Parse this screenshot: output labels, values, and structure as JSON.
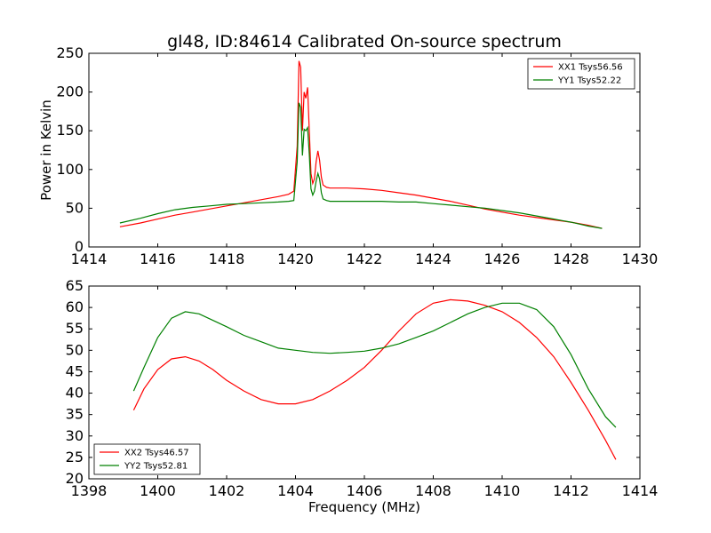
{
  "figure": {
    "title": "gl48, ID:84614 Calibrated On-source spectrum"
  },
  "chart_data": [
    {
      "type": "line",
      "title": "gl48, ID:84614 Calibrated On-source spectrum",
      "xlabel": "",
      "ylabel": "Power in Kelvin",
      "xlim": [
        1414,
        1430
      ],
      "ylim": [
        0,
        250
      ],
      "xticks": [
        "1414",
        "1416",
        "1418",
        "1420",
        "1422",
        "1424",
        "1426",
        "1428",
        "1430"
      ],
      "yticks": [
        "0",
        "50",
        "100",
        "150",
        "200",
        "250"
      ],
      "grid": false,
      "legend_position": "top-right",
      "series": [
        {
          "name": "XX1 Tsys56.56",
          "color": "#ff0000",
          "x": [
            1414.9,
            1415.5,
            1416.0,
            1416.5,
            1417.0,
            1417.5,
            1418.0,
            1418.5,
            1419.0,
            1419.5,
            1419.8,
            1419.95,
            1420.05,
            1420.1,
            1420.15,
            1420.2,
            1420.25,
            1420.3,
            1420.35,
            1420.4,
            1420.45,
            1420.5,
            1420.55,
            1420.6,
            1420.65,
            1420.7,
            1420.75,
            1420.8,
            1420.9,
            1421.0,
            1421.5,
            1422.0,
            1422.5,
            1423.0,
            1423.5,
            1424.0,
            1424.5,
            1425.0,
            1425.5,
            1426.0,
            1426.5,
            1427.0,
            1427.5,
            1428.0,
            1428.5,
            1428.9
          ],
          "y": [
            26,
            31,
            36,
            41,
            45,
            49,
            53,
            57,
            61,
            65,
            68,
            72,
            130,
            240,
            232,
            150,
            200,
            192,
            206,
            150,
            95,
            82,
            88,
            110,
            124,
            112,
            90,
            80,
            77,
            76,
            76,
            75,
            73,
            70,
            67,
            63,
            59,
            54,
            49,
            45,
            41,
            38,
            35,
            32,
            28,
            24
          ]
        },
        {
          "name": "YY1 Tsys52.22",
          "color": "#008000",
          "x": [
            1414.9,
            1415.5,
            1416.0,
            1416.5,
            1417.0,
            1417.5,
            1418.0,
            1418.5,
            1419.0,
            1419.5,
            1419.8,
            1419.95,
            1420.05,
            1420.1,
            1420.15,
            1420.2,
            1420.25,
            1420.3,
            1420.35,
            1420.4,
            1420.45,
            1420.5,
            1420.55,
            1420.6,
            1420.65,
            1420.7,
            1420.75,
            1420.8,
            1420.9,
            1421.0,
            1421.5,
            1422.0,
            1422.5,
            1423.0,
            1423.5,
            1424.0,
            1424.5,
            1425.0,
            1425.5,
            1426.0,
            1426.5,
            1427.0,
            1427.5,
            1428.0,
            1428.5,
            1428.9
          ],
          "y": [
            31,
            37,
            43,
            48,
            51,
            53,
            55,
            56,
            57,
            58,
            59,
            60,
            110,
            186,
            180,
            118,
            152,
            150,
            154,
            120,
            75,
            67,
            72,
            85,
            95,
            88,
            70,
            62,
            60,
            59,
            59,
            59,
            59,
            58,
            58,
            56,
            54,
            52,
            50,
            47,
            44,
            40,
            36,
            32,
            27,
            24
          ]
        }
      ]
    },
    {
      "type": "line",
      "title": "",
      "xlabel": "Frequency (MHz)",
      "ylabel": "",
      "xlim": [
        1398,
        1414
      ],
      "ylim": [
        20,
        65
      ],
      "xticks": [
        "1398",
        "1400",
        "1402",
        "1404",
        "1406",
        "1408",
        "1410",
        "1412",
        "1414"
      ],
      "yticks": [
        "20",
        "25",
        "30",
        "35",
        "40",
        "45",
        "50",
        "55",
        "60",
        "65"
      ],
      "grid": false,
      "legend_position": "bottom-left",
      "series": [
        {
          "name": "XX2 Tsys46.57",
          "color": "#ff0000",
          "x": [
            1399.3,
            1399.6,
            1400.0,
            1400.4,
            1400.8,
            1401.2,
            1401.6,
            1402.0,
            1402.5,
            1403.0,
            1403.5,
            1404.0,
            1404.5,
            1405.0,
            1405.5,
            1406.0,
            1406.5,
            1407.0,
            1407.5,
            1408.0,
            1408.5,
            1409.0,
            1409.5,
            1410.0,
            1410.5,
            1411.0,
            1411.5,
            1412.0,
            1412.5,
            1413.0,
            1413.3
          ],
          "y": [
            36,
            41,
            45.5,
            48,
            48.5,
            47.5,
            45.5,
            43,
            40.5,
            38.5,
            37.5,
            37.5,
            38.5,
            40.5,
            43,
            46,
            50,
            54.5,
            58.5,
            61,
            61.8,
            61.5,
            60.5,
            59,
            56.5,
            53,
            48.5,
            42.5,
            36,
            29,
            24.5
          ]
        },
        {
          "name": "YY2 Tsys52.81",
          "color": "#008000",
          "x": [
            1399.3,
            1399.6,
            1400.0,
            1400.4,
            1400.8,
            1401.2,
            1401.6,
            1402.0,
            1402.5,
            1403.0,
            1403.5,
            1404.0,
            1404.5,
            1405.0,
            1405.5,
            1406.0,
            1406.5,
            1407.0,
            1407.5,
            1408.0,
            1408.5,
            1409.0,
            1409.5,
            1410.0,
            1410.5,
            1411.0,
            1411.5,
            1412.0,
            1412.5,
            1413.0,
            1413.3
          ],
          "y": [
            40.5,
            46,
            53,
            57.5,
            59,
            58.5,
            57,
            55.5,
            53.5,
            52,
            50.5,
            50,
            49.5,
            49.3,
            49.5,
            49.8,
            50.5,
            51.5,
            53,
            54.5,
            56.5,
            58.5,
            60,
            61,
            61,
            59.5,
            55.5,
            49,
            41,
            34.5,
            32
          ]
        }
      ]
    }
  ]
}
